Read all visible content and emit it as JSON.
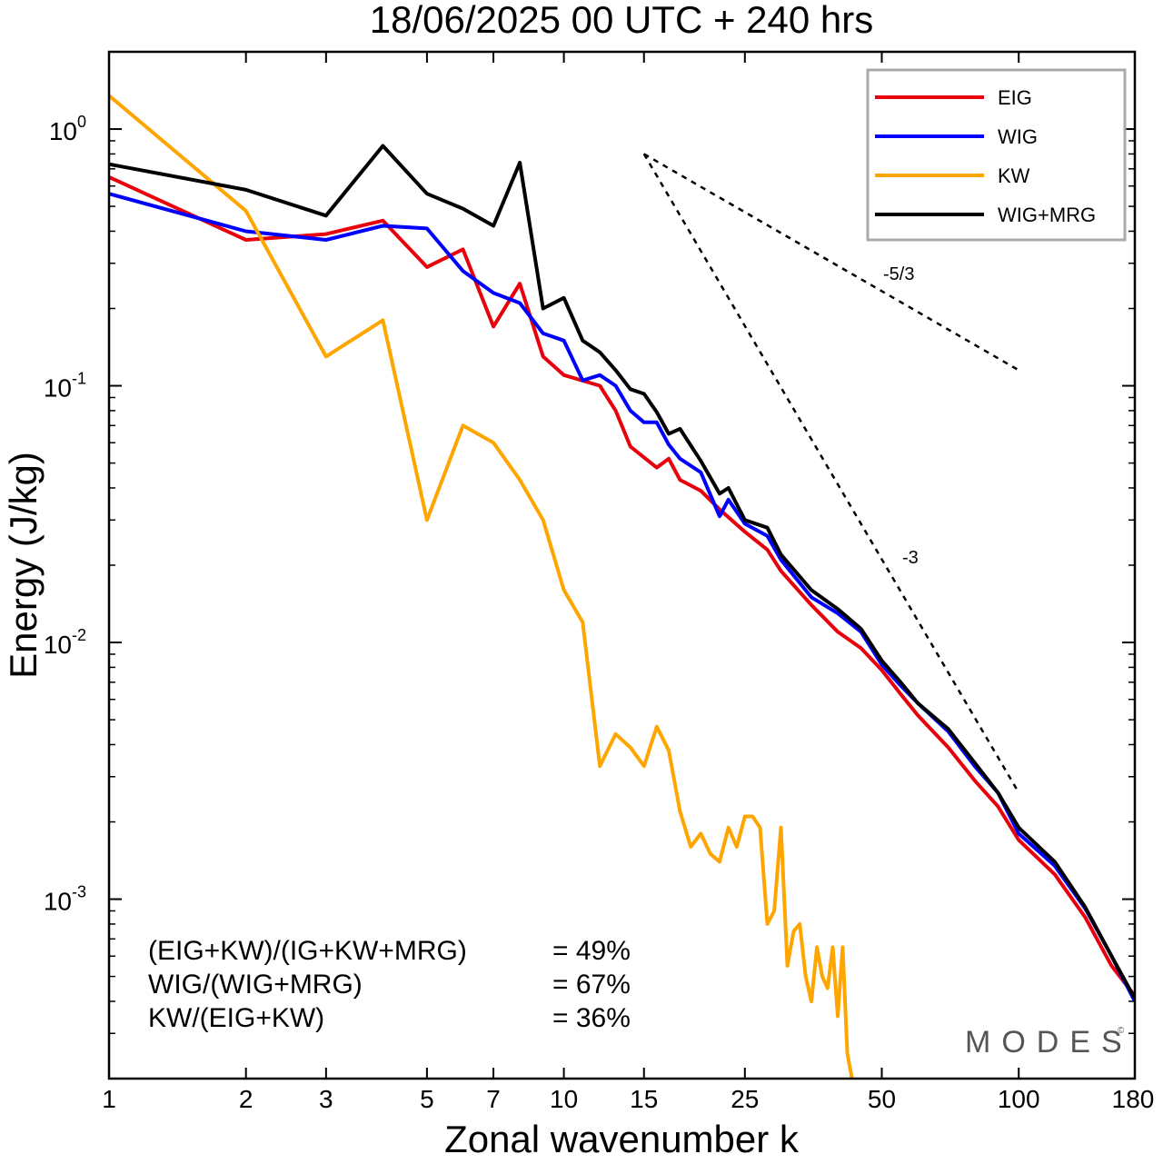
{
  "chart_data": {
    "type": "line",
    "title": "18/06/2025  00 UTC  + 240 hrs",
    "xlabel": "Zonal wavenumber k",
    "ylabel": "Energy (J/kg)",
    "x_scale": "log",
    "y_scale": "log",
    "xlim": [
      1,
      180
    ],
    "ylim": [
      0.0002,
      2.0
    ],
    "x_ticks": [
      1,
      2,
      3,
      5,
      7,
      10,
      15,
      25,
      50,
      100,
      180
    ],
    "x_tick_labels": [
      "1",
      "2",
      "3",
      "5",
      "7",
      "10",
      "15",
      "25",
      "50",
      "100",
      "180"
    ],
    "y_ticks": [
      {
        "base": "10",
        "exp": "0",
        "value": 1
      },
      {
        "base": "10",
        "exp": "-1",
        "value": 0.1
      },
      {
        "base": "10",
        "exp": "-2",
        "value": 0.01
      },
      {
        "base": "10",
        "exp": "-3",
        "value": 0.001
      }
    ],
    "legend_position": "top-right",
    "series": [
      {
        "name": "EIG",
        "color": "#e8000b",
        "points": [
          [
            1,
            0.65
          ],
          [
            2,
            0.37
          ],
          [
            3,
            0.39
          ],
          [
            4,
            0.44
          ],
          [
            5,
            0.29
          ],
          [
            6,
            0.34
          ],
          [
            7,
            0.17
          ],
          [
            8,
            0.25
          ],
          [
            9,
            0.13
          ],
          [
            10,
            0.11
          ],
          [
            12,
            0.1
          ],
          [
            13,
            0.08
          ],
          [
            14,
            0.058
          ],
          [
            16,
            0.048
          ],
          [
            17,
            0.052
          ],
          [
            18,
            0.043
          ],
          [
            20,
            0.039
          ],
          [
            22,
            0.033
          ],
          [
            25,
            0.027
          ],
          [
            28,
            0.023
          ],
          [
            30,
            0.019
          ],
          [
            35,
            0.014
          ],
          [
            40,
            0.011
          ],
          [
            45,
            0.0095
          ],
          [
            50,
            0.0078
          ],
          [
            55,
            0.0063
          ],
          [
            60,
            0.0052
          ],
          [
            70,
            0.0039
          ],
          [
            80,
            0.0029
          ],
          [
            90,
            0.0023
          ],
          [
            100,
            0.0017
          ],
          [
            120,
            0.00125
          ],
          [
            140,
            0.00085
          ],
          [
            160,
            0.00055
          ],
          [
            180,
            0.00042
          ]
        ]
      },
      {
        "name": "WIG",
        "color": "#0000ff",
        "points": [
          [
            1,
            0.56
          ],
          [
            2,
            0.4
          ],
          [
            3,
            0.37
          ],
          [
            4,
            0.42
          ],
          [
            5,
            0.41
          ],
          [
            6,
            0.28
          ],
          [
            7,
            0.23
          ],
          [
            8,
            0.21
          ],
          [
            9,
            0.16
          ],
          [
            10,
            0.15
          ],
          [
            11,
            0.105
          ],
          [
            12,
            0.11
          ],
          [
            13,
            0.1
          ],
          [
            14,
            0.08
          ],
          [
            15,
            0.072
          ],
          [
            16,
            0.072
          ],
          [
            17,
            0.059
          ],
          [
            18,
            0.052
          ],
          [
            20,
            0.046
          ],
          [
            22,
            0.031
          ],
          [
            23,
            0.036
          ],
          [
            25,
            0.029
          ],
          [
            28,
            0.026
          ],
          [
            30,
            0.021
          ],
          [
            35,
            0.015
          ],
          [
            40,
            0.013
          ],
          [
            45,
            0.011
          ],
          [
            50,
            0.0082
          ],
          [
            55,
            0.0068
          ],
          [
            60,
            0.0058
          ],
          [
            70,
            0.0045
          ],
          [
            80,
            0.0033
          ],
          [
            90,
            0.0026
          ],
          [
            100,
            0.0018
          ],
          [
            120,
            0.00135
          ],
          [
            140,
            0.00092
          ],
          [
            160,
            0.0006
          ],
          [
            180,
            0.0004
          ]
        ]
      },
      {
        "name": "KW",
        "color": "#ffa500",
        "points": [
          [
            1,
            1.35
          ],
          [
            2,
            0.48
          ],
          [
            3,
            0.13
          ],
          [
            4,
            0.18
          ],
          [
            5,
            0.03
          ],
          [
            6,
            0.07
          ],
          [
            7,
            0.06
          ],
          [
            8,
            0.043
          ],
          [
            9,
            0.03
          ],
          [
            10,
            0.016
          ],
          [
            11,
            0.012
          ],
          [
            12,
            0.0033
          ],
          [
            13,
            0.0044
          ],
          [
            14,
            0.0039
          ],
          [
            15,
            0.0033
          ],
          [
            16,
            0.0047
          ],
          [
            17,
            0.0038
          ],
          [
            18,
            0.0022
          ],
          [
            19,
            0.0016
          ],
          [
            20,
            0.0018
          ],
          [
            21,
            0.0015
          ],
          [
            22,
            0.0014
          ],
          [
            23,
            0.0019
          ],
          [
            24,
            0.0016
          ],
          [
            25,
            0.0021
          ],
          [
            26,
            0.0021
          ],
          [
            27,
            0.0019
          ],
          [
            28,
            0.0008
          ],
          [
            29,
            0.0009
          ],
          [
            30,
            0.0019
          ],
          [
            31,
            0.00055
          ],
          [
            32,
            0.00075
          ],
          [
            33,
            0.0008
          ],
          [
            34,
            0.0005
          ],
          [
            35,
            0.0004
          ],
          [
            36,
            0.00065
          ],
          [
            37,
            0.0005
          ],
          [
            38,
            0.00045
          ],
          [
            39,
            0.00065
          ],
          [
            40,
            0.00035
          ],
          [
            41,
            0.00065
          ],
          [
            42,
            0.00025
          ],
          [
            43,
            0.0002
          ]
        ]
      },
      {
        "name": "WIG+MRG",
        "color": "#000000",
        "points": [
          [
            1,
            0.73
          ],
          [
            2,
            0.58
          ],
          [
            3,
            0.46
          ],
          [
            4,
            0.86
          ],
          [
            5,
            0.56
          ],
          [
            6,
            0.49
          ],
          [
            7,
            0.42
          ],
          [
            8,
            0.74
          ],
          [
            9,
            0.2
          ],
          [
            10,
            0.22
          ],
          [
            11,
            0.15
          ],
          [
            12,
            0.135
          ],
          [
            13,
            0.115
          ],
          [
            14,
            0.097
          ],
          [
            15,
            0.093
          ],
          [
            16,
            0.079
          ],
          [
            17,
            0.065
          ],
          [
            18,
            0.068
          ],
          [
            20,
            0.051
          ],
          [
            22,
            0.038
          ],
          [
            23,
            0.04
          ],
          [
            25,
            0.03
          ],
          [
            28,
            0.028
          ],
          [
            30,
            0.022
          ],
          [
            35,
            0.016
          ],
          [
            40,
            0.0135
          ],
          [
            45,
            0.0113
          ],
          [
            50,
            0.0085
          ],
          [
            55,
            0.007
          ],
          [
            60,
            0.0058
          ],
          [
            70,
            0.0046
          ],
          [
            80,
            0.0034
          ],
          [
            90,
            0.0026
          ],
          [
            100,
            0.0019
          ],
          [
            120,
            0.0014
          ],
          [
            140,
            0.00093
          ],
          [
            160,
            0.0006
          ],
          [
            180,
            0.00041
          ]
        ]
      }
    ],
    "reference_slopes": [
      {
        "label": "-5/3",
        "from": [
          15,
          0.8
        ],
        "to": [
          100,
          0.115
        ]
      },
      {
        "label": "-3",
        "from": [
          15,
          0.8
        ],
        "to": [
          100,
          0.0026
        ]
      }
    ],
    "stats": [
      {
        "label": "(EIG+KW)/(IG+KW+MRG)",
        "value": "= 49%"
      },
      {
        "label": "WIG/(WIG+MRG)",
        "value": "= 67%"
      },
      {
        "label": "KW/(EIG+KW)",
        "value": "= 36%"
      }
    ],
    "brand": "MODES",
    "brand_mark": "©"
  }
}
